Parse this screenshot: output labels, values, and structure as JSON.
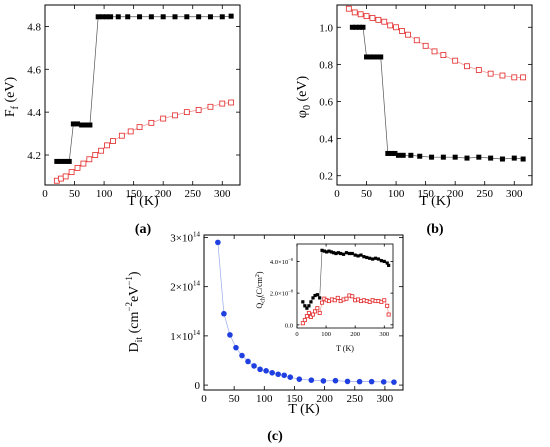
{
  "colors": {
    "black": "#000000",
    "red": "#e32626",
    "blue": "#1f3fe0",
    "axis": "#000000",
    "connector_black": "#555555",
    "connector_red": "#e88a8a",
    "connector_blue": "#9aa8ee"
  },
  "chart_data": [
    {
      "id": "a",
      "type": "scatter",
      "panel_label": "(a)",
      "title": "",
      "xlabel": "T (K)",
      "ylabel_main": "F",
      "ylabel_sub": "f",
      "ylabel_unit": " (eV)",
      "xlim": [
        0,
        330
      ],
      "ylim": [
        4.06,
        4.9
      ],
      "xticks": [
        0,
        50,
        100,
        150,
        200,
        250,
        300
      ],
      "xtick_labels": [
        "0",
        "50",
        "100",
        "150",
        "200",
        "250",
        "300"
      ],
      "yticks": [
        4.2,
        4.4,
        4.6,
        4.8
      ],
      "ytick_labels": [
        "4.2",
        "4.4",
        "4.6",
        "4.8"
      ],
      "grid": false,
      "series": [
        {
          "marker": "filled-square",
          "color": "black",
          "x": [
            20,
            27,
            34,
            41,
            48,
            55,
            62,
            69,
            76,
            90,
            97,
            104,
            111,
            124,
            140,
            160,
            180,
            200,
            220,
            240,
            260,
            280,
            300,
            315
          ],
          "y": [
            4.17,
            4.17,
            4.17,
            4.17,
            4.345,
            4.345,
            4.34,
            4.34,
            4.34,
            4.845,
            4.845,
            4.845,
            4.845,
            4.845,
            4.845,
            4.845,
            4.845,
            4.845,
            4.845,
            4.845,
            4.845,
            4.845,
            4.845,
            4.848
          ]
        },
        {
          "marker": "open-square",
          "color": "red",
          "x": [
            20,
            27,
            35,
            45,
            55,
            65,
            75,
            85,
            95,
            105,
            115,
            130,
            145,
            160,
            180,
            200,
            220,
            240,
            260,
            280,
            300,
            315
          ],
          "y": [
            4.08,
            4.09,
            4.1,
            4.12,
            4.14,
            4.16,
            4.18,
            4.2,
            4.22,
            4.245,
            4.265,
            4.29,
            4.31,
            4.33,
            4.35,
            4.37,
            4.385,
            4.4,
            4.41,
            4.425,
            4.44,
            4.445
          ]
        }
      ]
    },
    {
      "id": "b",
      "type": "scatter",
      "panel_label": "(b)",
      "title": "",
      "xlabel": "T (K)",
      "ylabel_main": "φ",
      "ylabel_sub": "0",
      "ylabel_unit": " (eV)",
      "xlim": [
        0,
        330
      ],
      "ylim": [
        0.15,
        1.12
      ],
      "xticks": [
        0,
        50,
        100,
        150,
        200,
        250,
        300
      ],
      "xtick_labels": [
        "0",
        "50",
        "100",
        "150",
        "200",
        "250",
        "300"
      ],
      "yticks": [
        0.2,
        0.4,
        0.6,
        0.8,
        1.0
      ],
      "ytick_labels": [
        "0.2",
        "0.4",
        "0.6",
        "0.8",
        "1.0"
      ],
      "grid": false,
      "series": [
        {
          "marker": "filled-square",
          "color": "black",
          "x": [
            26,
            32,
            38,
            44,
            50,
            56,
            62,
            68,
            74,
            86,
            92,
            98,
            104,
            112,
            125,
            140,
            160,
            180,
            200,
            220,
            240,
            260,
            280,
            300,
            315
          ],
          "y": [
            1.0,
            1.0,
            1.0,
            1.0,
            0.84,
            0.84,
            0.84,
            0.84,
            0.84,
            0.32,
            0.32,
            0.32,
            0.31,
            0.31,
            0.31,
            0.305,
            0.3,
            0.3,
            0.3,
            0.295,
            0.3,
            0.295,
            0.29,
            0.295,
            0.29
          ]
        },
        {
          "marker": "open-square",
          "color": "red",
          "x": [
            20,
            30,
            40,
            50,
            60,
            70,
            80,
            90,
            100,
            110,
            120,
            135,
            150,
            165,
            180,
            200,
            220,
            240,
            260,
            280,
            300,
            315
          ],
          "y": [
            1.1,
            1.08,
            1.07,
            1.06,
            1.05,
            1.04,
            1.03,
            1.01,
            1.0,
            0.98,
            0.96,
            0.93,
            0.9,
            0.87,
            0.85,
            0.82,
            0.79,
            0.77,
            0.75,
            0.74,
            0.73,
            0.73
          ]
        }
      ]
    },
    {
      "id": "c",
      "type": "scatter",
      "panel_label": "(c)",
      "title": "",
      "xlabel": "T (K)",
      "ylabel_main": "D",
      "ylabel_sub": "it",
      "ylabel_unit": " (cm",
      "ylabel_sup1": "−2",
      "ylabel_mid": "eV",
      "ylabel_sup2": "−1",
      "ylabel_end": ")",
      "xlim": [
        0,
        330
      ],
      "ylim": [
        -10000000000000.0,
        305000000000000.0
      ],
      "xticks": [
        0,
        50,
        100,
        150,
        200,
        250,
        300
      ],
      "xtick_labels": [
        "0",
        "50",
        "100",
        "150",
        "200",
        "250",
        "300"
      ],
      "yticks": [
        0,
        100000000000000.0,
        200000000000000.0,
        300000000000000.0
      ],
      "ytick_base": [
        "0",
        "1×10",
        "2×10",
        "3×10"
      ],
      "ytick_exp": [
        "",
        "14",
        "14",
        "14"
      ],
      "grid": false,
      "series": [
        {
          "marker": "filled-circle",
          "color": "blue",
          "x": [
            23,
            33,
            43,
            53,
            63,
            73,
            83,
            93,
            103,
            113,
            123,
            133,
            143,
            158,
            178,
            198,
            218,
            238,
            258,
            278,
            298,
            315
          ],
          "y": [
            290000000000000.0,
            145000000000000.0,
            102000000000000.0,
            76000000000000.0,
            60000000000000.0,
            48000000000000.0,
            39000000000000.0,
            32000000000000.0,
            29000000000000.0,
            25000000000000.0,
            22000000000000.0,
            20000000000000.0,
            16000000000000.0,
            12000000000000.0,
            10000000000000.0,
            8500000000000.0,
            9000000000000.0,
            7500000000000.0,
            7000000000000.0,
            7000000000000.0,
            6500000000000.0,
            6000000000000.0
          ]
        }
      ],
      "inset": {
        "type": "scatter",
        "xlabel": "T (K)",
        "ylabel_main": "Q",
        "ylabel_sub": "ch",
        "ylabel_unit": "(C/cm",
        "ylabel_sup": "2",
        "ylabel_end": ")",
        "xlim": [
          0,
          330
        ],
        "ylim": [
          -2e-09,
          5.1e-08
        ],
        "xticks": [
          0,
          100,
          200,
          300
        ],
        "xtick_labels": [
          "0",
          "100",
          "200",
          "300"
        ],
        "yticks": [
          0,
          2e-08,
          4e-08
        ],
        "ytick_base": [
          "0.0",
          "2.0×10",
          "4.0×10"
        ],
        "ytick_exp": [
          "",
          "−8",
          "−8"
        ],
        "series": [
          {
            "marker": "filled-square",
            "color": "black",
            "x": [
              20,
              27,
              34,
              41,
              48,
              55,
              62,
              70,
              78,
              86,
              94,
              102,
              110,
              118,
              126,
              134,
              142,
              150,
              160,
              170,
              180,
              190,
              200,
              210,
              220,
              230,
              240,
              250,
              260,
              270,
              280,
              290,
              300,
              310,
              315
            ],
            "y": [
              1.45e-08,
              1.2e-08,
              1.05e-08,
              1.2e-08,
              1.45e-08,
              1.7e-08,
              1.85e-08,
              1.9e-08,
              1.7e-08,
              4.7e-08,
              4.65e-08,
              4.6e-08,
              4.65e-08,
              4.6e-08,
              4.55e-08,
              4.5e-08,
              4.55e-08,
              4.5e-08,
              4.45e-08,
              4.55e-08,
              4.5e-08,
              4.5e-08,
              4.4e-08,
              4.35e-08,
              4.4e-08,
              4.3e-08,
              4.25e-08,
              4.2e-08,
              4.15e-08,
              4.2e-08,
              4.15e-08,
              4.05e-08,
              4e-08,
              3.9e-08,
              3.75e-08
            ]
          },
          {
            "marker": "open-square",
            "color": "red",
            "x": [
              20,
              27,
              34,
              41,
              48,
              55,
              62,
              70,
              78,
              86,
              94,
              102,
              110,
              120,
              130,
              140,
              150,
              160,
              170,
              180,
              190,
              200,
              210,
              220,
              230,
              240,
              250,
              260,
              270,
              280,
              290,
              300,
              310,
              315
            ],
            "y": [
              1e-09,
              3e-09,
              5.5e-09,
              7.5e-09,
              5e-09,
              6.5e-09,
              8.5e-09,
              1.05e-08,
              7.5e-09,
              1.4e-08,
              1.65e-08,
              1.55e-08,
              1.5e-08,
              1.6e-08,
              1.55e-08,
              1.7e-08,
              1.5e-08,
              1.6e-08,
              1.65e-08,
              1.85e-08,
              1.8e-08,
              1.55e-08,
              1.6e-08,
              1.5e-08,
              1.55e-08,
              1.5e-08,
              1.45e-08,
              1.55e-08,
              1.5e-08,
              1.5e-08,
              1.45e-08,
              1.55e-08,
              1.2e-08,
              6.5e-09
            ]
          }
        ]
      }
    }
  ]
}
